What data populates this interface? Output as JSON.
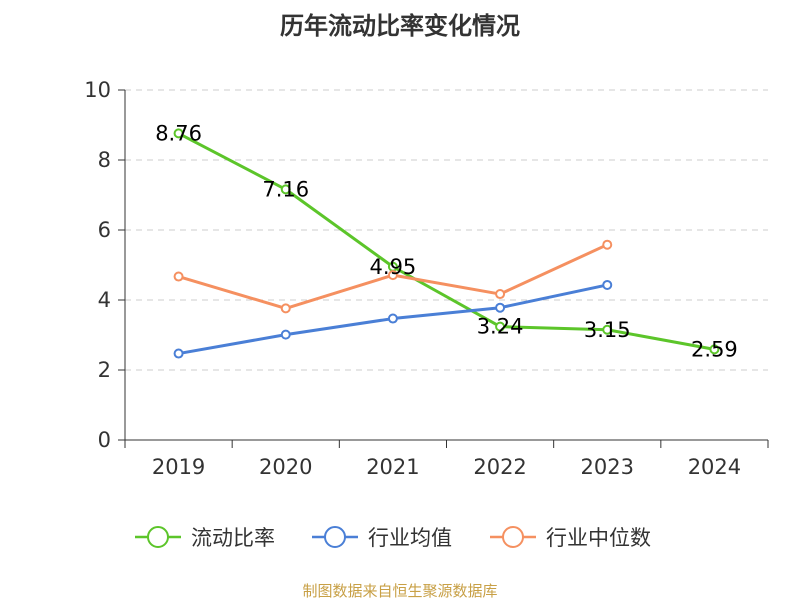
{
  "chart_data": {
    "type": "line",
    "title": "历年流动比率变化情况",
    "categories": [
      "2019",
      "2020",
      "2021",
      "2022",
      "2023",
      "2024"
    ],
    "ylim": [
      0,
      10
    ],
    "yticks": [
      0,
      2,
      4,
      6,
      8,
      10
    ],
    "grid": true,
    "legend_position": "bottom",
    "series": [
      {
        "name": "流动比率",
        "color": "#5cc52a",
        "values": [
          8.76,
          7.16,
          4.95,
          3.24,
          3.15,
          2.59
        ],
        "labels": [
          "8.76",
          "7.16",
          "4.95",
          "3.24",
          "3.15",
          "2.59"
        ]
      },
      {
        "name": "行业均值",
        "color": "#4a7fd6",
        "values": [
          2.47,
          3.01,
          3.47,
          3.78,
          4.43,
          null
        ]
      },
      {
        "name": "行业中位数",
        "color": "#f59060",
        "values": [
          4.67,
          3.76,
          4.71,
          4.17,
          5.58,
          null
        ]
      }
    ]
  },
  "source_text": "制图数据来自恒生聚源数据库"
}
